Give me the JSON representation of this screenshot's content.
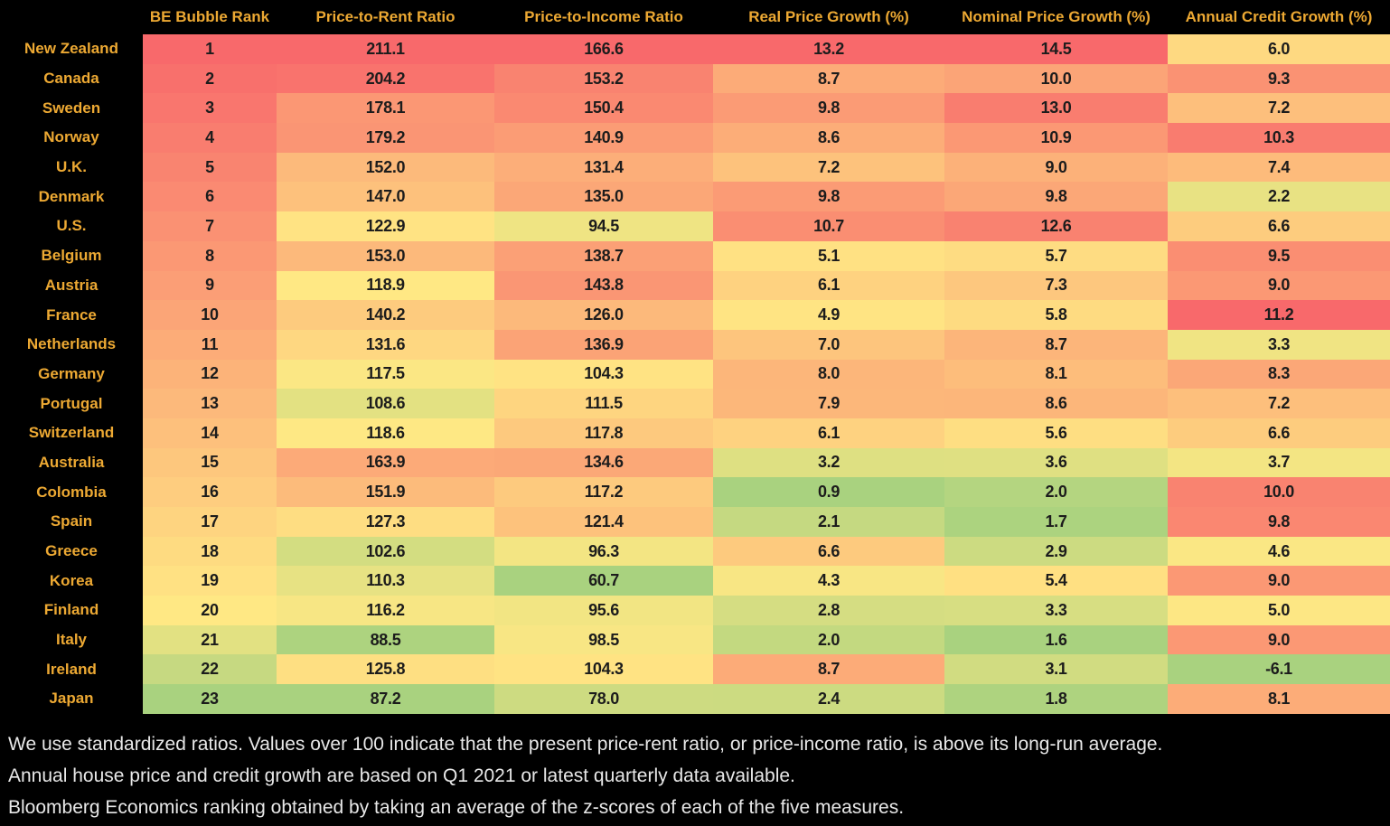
{
  "colors": {
    "background": "#000000",
    "label_text": "#EDA933",
    "cell_text": "#1c1c1c",
    "footnote_text": "#e8e8e8",
    "heat_green": "#A9D27F",
    "heat_yellow": "#FFE884",
    "heat_red": "#F8696B"
  },
  "footnotes": [
    "We use standardized ratios. Values over 100 indicate that the present price-rent ratio, or price-income ratio, is above its long-run average.",
    "Annual house price and credit growth are based on Q1 2021 or latest quarterly data available.",
    "Bloomberg Economics ranking obtained by taking an average of the z-scores of each of the five measures."
  ],
  "chart_data": {
    "type": "heatmap",
    "title": "",
    "columns": [
      "BE Bubble Rank",
      "Price-to-Rent Ratio",
      "Price-to-Income Ratio",
      "Real Price Growth (%)",
      "Nominal Price Growth (%)",
      "Annual Credit Growth (%)"
    ],
    "column_decimals": [
      0,
      1,
      1,
      1,
      1,
      1
    ],
    "color_anchors_green_yellow_red": [
      [
        23,
        20,
        1
      ],
      [
        87.2,
        119,
        211.1
      ],
      [
        60.7,
        102,
        166.6
      ],
      [
        0.9,
        4.6,
        13.2
      ],
      [
        1.6,
        4.8,
        14.5
      ],
      [
        -6.1,
        5.3,
        11.2
      ]
    ],
    "rows": [
      {
        "country": "New Zealand",
        "values": [
          1,
          211.1,
          166.6,
          13.2,
          14.5,
          6.0
        ]
      },
      {
        "country": "Canada",
        "values": [
          2,
          204.2,
          153.2,
          8.7,
          10.0,
          9.3
        ]
      },
      {
        "country": "Sweden",
        "values": [
          3,
          178.1,
          150.4,
          9.8,
          13.0,
          7.2
        ]
      },
      {
        "country": "Norway",
        "values": [
          4,
          179.2,
          140.9,
          8.6,
          10.9,
          10.3
        ]
      },
      {
        "country": "U.K.",
        "values": [
          5,
          152.0,
          131.4,
          7.2,
          9.0,
          7.4
        ]
      },
      {
        "country": "Denmark",
        "values": [
          6,
          147.0,
          135.0,
          9.8,
          9.8,
          2.2
        ]
      },
      {
        "country": "U.S.",
        "values": [
          7,
          122.9,
          94.5,
          10.7,
          12.6,
          6.6
        ]
      },
      {
        "country": "Belgium",
        "values": [
          8,
          153.0,
          138.7,
          5.1,
          5.7,
          9.5
        ]
      },
      {
        "country": "Austria",
        "values": [
          9,
          118.9,
          143.8,
          6.1,
          7.3,
          9.0
        ]
      },
      {
        "country": "France",
        "values": [
          10,
          140.2,
          126.0,
          4.9,
          5.8,
          11.2
        ]
      },
      {
        "country": "Netherlands",
        "values": [
          11,
          131.6,
          136.9,
          7.0,
          8.7,
          3.3
        ]
      },
      {
        "country": "Germany",
        "values": [
          12,
          117.5,
          104.3,
          8.0,
          8.1,
          8.3
        ]
      },
      {
        "country": "Portugal",
        "values": [
          13,
          108.6,
          111.5,
          7.9,
          8.6,
          7.2
        ]
      },
      {
        "country": "Switzerland",
        "values": [
          14,
          118.6,
          117.8,
          6.1,
          5.6,
          6.6
        ]
      },
      {
        "country": "Australia",
        "values": [
          15,
          163.9,
          134.6,
          3.2,
          3.6,
          3.7
        ]
      },
      {
        "country": "Colombia",
        "values": [
          16,
          151.9,
          117.2,
          0.9,
          2.0,
          10.0
        ]
      },
      {
        "country": "Spain",
        "values": [
          17,
          127.3,
          121.4,
          2.1,
          1.7,
          9.8
        ]
      },
      {
        "country": "Greece",
        "values": [
          18,
          102.6,
          96.3,
          6.6,
          2.9,
          4.6
        ]
      },
      {
        "country": "Korea",
        "values": [
          19,
          110.3,
          60.7,
          4.3,
          5.4,
          9.0
        ]
      },
      {
        "country": "Finland",
        "values": [
          20,
          116.2,
          95.6,
          2.8,
          3.3,
          5.0
        ]
      },
      {
        "country": "Italy",
        "values": [
          21,
          88.5,
          98.5,
          2.0,
          1.6,
          9.0
        ]
      },
      {
        "country": "Ireland",
        "values": [
          22,
          125.8,
          104.3,
          8.7,
          3.1,
          -6.1
        ]
      },
      {
        "country": "Japan",
        "values": [
          23,
          87.2,
          78.0,
          2.4,
          1.8,
          8.1
        ]
      }
    ]
  }
}
